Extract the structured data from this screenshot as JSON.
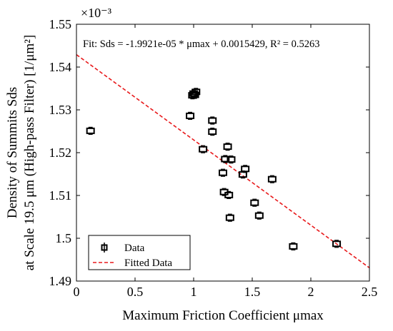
{
  "chart_data": {
    "type": "scatter",
    "fit_text": "Fit: Sds = -1.9921e-05 * μmax + 0.0015429, R² = 0.5263",
    "xlabel": "Maximum Friction Coefficient μmax",
    "ylabel_line1": "Density of Summits Sds",
    "ylabel_line2": "at Scale 19.5 μm (High-pass Filter) [1/μm²]",
    "y_exponent": "×10⁻³",
    "xlim": [
      0,
      2.5
    ],
    "ylim": [
      1.49,
      1.55
    ],
    "x_ticks": [
      0,
      0.5,
      1,
      1.5,
      2,
      2.5
    ],
    "x_tick_labels": [
      "0",
      "0.5",
      "1",
      "1.5",
      "2",
      "2.5"
    ],
    "y_ticks": [
      1.49,
      1.5,
      1.51,
      1.52,
      1.53,
      1.54,
      1.55
    ],
    "y_tick_labels": [
      "1.49",
      "1.5",
      "1.51",
      "1.52",
      "1.53",
      "1.54",
      "1.55"
    ],
    "grid": false,
    "legend_placement": "bottom-left",
    "series": [
      {
        "name": "Data",
        "marker": "square-with-errorbar",
        "color": "#000000",
        "points": [
          {
            "x": 0.12,
            "y": 1.5251
          },
          {
            "x": 0.97,
            "y": 1.5286
          },
          {
            "x": 0.99,
            "y": 1.5334
          },
          {
            "x": 1.0,
            "y": 1.5338
          },
          {
            "x": 1.01,
            "y": 1.5335
          },
          {
            "x": 1.02,
            "y": 1.5342
          },
          {
            "x": 1.08,
            "y": 1.5208
          },
          {
            "x": 1.16,
            "y": 1.5275
          },
          {
            "x": 1.16,
            "y": 1.5249
          },
          {
            "x": 1.25,
            "y": 1.5153
          },
          {
            "x": 1.27,
            "y": 1.5185
          },
          {
            "x": 1.26,
            "y": 1.5108
          },
          {
            "x": 1.29,
            "y": 1.5214
          },
          {
            "x": 1.3,
            "y": 1.5101
          },
          {
            "x": 1.31,
            "y": 1.5048
          },
          {
            "x": 1.32,
            "y": 1.5184
          },
          {
            "x": 1.42,
            "y": 1.5149
          },
          {
            "x": 1.44,
            "y": 1.5162
          },
          {
            "x": 1.52,
            "y": 1.5083
          },
          {
            "x": 1.56,
            "y": 1.5053
          },
          {
            "x": 1.67,
            "y": 1.5138
          },
          {
            "x": 1.85,
            "y": 1.4981
          },
          {
            "x": 2.22,
            "y": 1.4987
          }
        ]
      },
      {
        "name": "Fitted Data",
        "line_style": "dashed",
        "color": "#e8191b",
        "slope": -0.019921,
        "intercept": 1.5429,
        "x_range": [
          0,
          2.5
        ]
      }
    ]
  }
}
